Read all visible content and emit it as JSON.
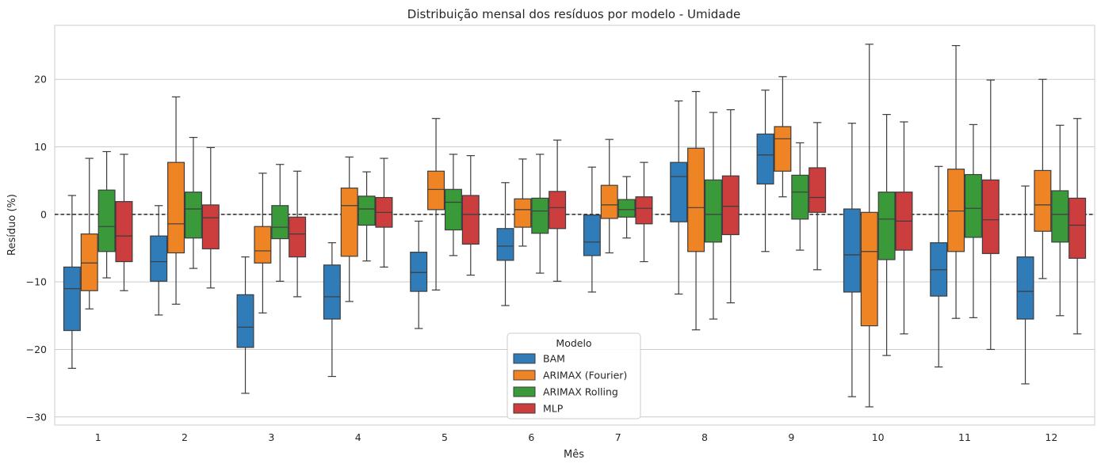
{
  "chart_data": {
    "type": "boxplot",
    "title": "Distribuição mensal dos resíduos por modelo - Umidade",
    "xlabel": "Mês",
    "ylabel": "Resíduo (%)",
    "categories": [
      "1",
      "2",
      "3",
      "4",
      "5",
      "6",
      "7",
      "8",
      "9",
      "10",
      "11",
      "12"
    ],
    "ylim": [
      -31.2,
      28.0
    ],
    "yticks": [
      -30,
      -20,
      -10,
      0,
      10,
      20
    ],
    "ytick_labels": [
      "−30",
      "−20",
      "−10",
      "0",
      "10",
      "20"
    ],
    "grid": "horizontal",
    "reference_line": 0,
    "legend": {
      "title": "Modelo",
      "position": "bottom-center",
      "entries": [
        "BAM",
        "ARIMAX (Fourier)",
        "ARIMAX Rolling",
        "MLP"
      ]
    },
    "series": [
      {
        "name": "BAM",
        "color": "#2f7cb8",
        "boxes": [
          {
            "wlow": -22.8,
            "q1": -17.2,
            "median": -11.0,
            "q3": -7.8,
            "whigh": 2.8
          },
          {
            "wlow": -14.9,
            "q1": -9.9,
            "median": -7.0,
            "q3": -3.2,
            "whigh": 1.3
          },
          {
            "wlow": -26.5,
            "q1": -19.7,
            "median": -16.7,
            "q3": -11.9,
            "whigh": -6.3
          },
          {
            "wlow": -24.0,
            "q1": -15.5,
            "median": -12.2,
            "q3": -7.5,
            "whigh": -4.2
          },
          {
            "wlow": -16.9,
            "q1": -11.4,
            "median": -8.6,
            "q3": -5.6,
            "whigh": -1.0
          },
          {
            "wlow": -13.5,
            "q1": -6.8,
            "median": -4.7,
            "q3": -2.1,
            "whigh": 4.7
          },
          {
            "wlow": -11.5,
            "q1": -6.1,
            "median": -4.1,
            "q3": -0.1,
            "whigh": 7.0
          },
          {
            "wlow": -11.8,
            "q1": -1.1,
            "median": 5.6,
            "q3": 7.7,
            "whigh": 16.8
          },
          {
            "wlow": -5.5,
            "q1": 4.5,
            "median": 8.8,
            "q3": 11.9,
            "whigh": 18.4
          },
          {
            "wlow": -27.0,
            "q1": -11.5,
            "median": -6.0,
            "q3": 0.8,
            "whigh": 13.5
          },
          {
            "wlow": -22.6,
            "q1": -12.1,
            "median": -8.2,
            "q3": -4.2,
            "whigh": 7.1
          },
          {
            "wlow": -25.1,
            "q1": -15.5,
            "median": -11.4,
            "q3": -6.3,
            "whigh": 4.2
          }
        ]
      },
      {
        "name": "ARIMAX (Fourier)",
        "color": "#ef8424",
        "boxes": [
          {
            "wlow": -14.0,
            "q1": -11.3,
            "median": -7.2,
            "q3": -2.9,
            "whigh": 8.3
          },
          {
            "wlow": -13.3,
            "q1": -5.7,
            "median": -1.4,
            "q3": 7.7,
            "whigh": 17.4
          },
          {
            "wlow": -14.6,
            "q1": -7.2,
            "median": -5.4,
            "q3": -1.8,
            "whigh": 6.1
          },
          {
            "wlow": -12.9,
            "q1": -6.2,
            "median": 1.3,
            "q3": 3.9,
            "whigh": 8.5
          },
          {
            "wlow": -11.2,
            "q1": 0.7,
            "median": 3.7,
            "q3": 6.4,
            "whigh": 14.2
          },
          {
            "wlow": -4.7,
            "q1": -1.9,
            "median": 0.7,
            "q3": 2.3,
            "whigh": 8.2
          },
          {
            "wlow": -5.7,
            "q1": -0.6,
            "median": 1.4,
            "q3": 4.3,
            "whigh": 11.1
          },
          {
            "wlow": -17.1,
            "q1": -5.5,
            "median": 1.0,
            "q3": 9.8,
            "whigh": 18.2
          },
          {
            "wlow": 2.6,
            "q1": 6.4,
            "median": 11.2,
            "q3": 13.0,
            "whigh": 20.4
          },
          {
            "wlow": -28.5,
            "q1": -16.5,
            "median": -5.5,
            "q3": 0.3,
            "whigh": 25.2
          },
          {
            "wlow": -15.4,
            "q1": -5.5,
            "median": 0.5,
            "q3": 6.7,
            "whigh": 25.0
          },
          {
            "wlow": -9.5,
            "q1": -2.5,
            "median": 1.4,
            "q3": 6.5,
            "whigh": 20.0
          }
        ]
      },
      {
        "name": "ARIMAX Rolling",
        "color": "#3a9a3a",
        "boxes": [
          {
            "wlow": -9.4,
            "q1": -5.5,
            "median": -1.8,
            "q3": 3.6,
            "whigh": 9.3
          },
          {
            "wlow": -8.0,
            "q1": -3.5,
            "median": 0.8,
            "q3": 3.3,
            "whigh": 11.4
          },
          {
            "wlow": -9.9,
            "q1": -3.6,
            "median": -1.9,
            "q3": 1.3,
            "whigh": 7.4
          },
          {
            "wlow": -6.9,
            "q1": -1.6,
            "median": 0.8,
            "q3": 2.7,
            "whigh": 6.3
          },
          {
            "wlow": -6.1,
            "q1": -2.3,
            "median": 1.8,
            "q3": 3.7,
            "whigh": 8.9
          },
          {
            "wlow": -8.7,
            "q1": -2.8,
            "median": 0.5,
            "q3": 2.4,
            "whigh": 8.9
          },
          {
            "wlow": -3.5,
            "q1": -0.4,
            "median": 0.7,
            "q3": 2.2,
            "whigh": 5.6
          },
          {
            "wlow": -15.5,
            "q1": -4.1,
            "median": 0.0,
            "q3": 5.1,
            "whigh": 15.1
          },
          {
            "wlow": -5.3,
            "q1": -0.7,
            "median": 3.3,
            "q3": 5.8,
            "whigh": 10.6
          },
          {
            "wlow": -20.9,
            "q1": -6.7,
            "median": -0.7,
            "q3": 3.3,
            "whigh": 14.8
          },
          {
            "wlow": -15.3,
            "q1": -3.4,
            "median": 0.9,
            "q3": 5.9,
            "whigh": 13.3
          },
          {
            "wlow": -15.0,
            "q1": -4.1,
            "median": 0.0,
            "q3": 3.5,
            "whigh": 13.2
          }
        ]
      },
      {
        "name": "MLP",
        "color": "#cc3d3e",
        "boxes": [
          {
            "wlow": -11.3,
            "q1": -7.0,
            "median": -3.2,
            "q3": 1.9,
            "whigh": 8.9
          },
          {
            "wlow": -10.9,
            "q1": -5.1,
            "median": -0.5,
            "q3": 1.4,
            "whigh": 9.9
          },
          {
            "wlow": -12.2,
            "q1": -6.3,
            "median": -2.9,
            "q3": -0.4,
            "whigh": 6.4
          },
          {
            "wlow": -7.8,
            "q1": -1.9,
            "median": 0.3,
            "q3": 2.5,
            "whigh": 8.3
          },
          {
            "wlow": -9.0,
            "q1": -4.4,
            "median": 0.0,
            "q3": 2.8,
            "whigh": 8.7
          },
          {
            "wlow": -9.9,
            "q1": -2.1,
            "median": 1.0,
            "q3": 3.4,
            "whigh": 11.0
          },
          {
            "wlow": -7.0,
            "q1": -1.4,
            "median": 0.9,
            "q3": 2.6,
            "whigh": 7.7
          },
          {
            "wlow": -13.1,
            "q1": -3.0,
            "median": 1.2,
            "q3": 5.7,
            "whigh": 15.5
          },
          {
            "wlow": -8.2,
            "q1": 0.3,
            "median": 2.5,
            "q3": 6.9,
            "whigh": 13.6
          },
          {
            "wlow": -17.7,
            "q1": -5.3,
            "median": -1.0,
            "q3": 3.3,
            "whigh": 13.7
          },
          {
            "wlow": -20.0,
            "q1": -5.8,
            "median": -0.8,
            "q3": 5.1,
            "whigh": 19.9
          },
          {
            "wlow": -17.7,
            "q1": -6.5,
            "median": -1.6,
            "q3": 2.4,
            "whigh": 14.2
          }
        ]
      }
    ]
  }
}
